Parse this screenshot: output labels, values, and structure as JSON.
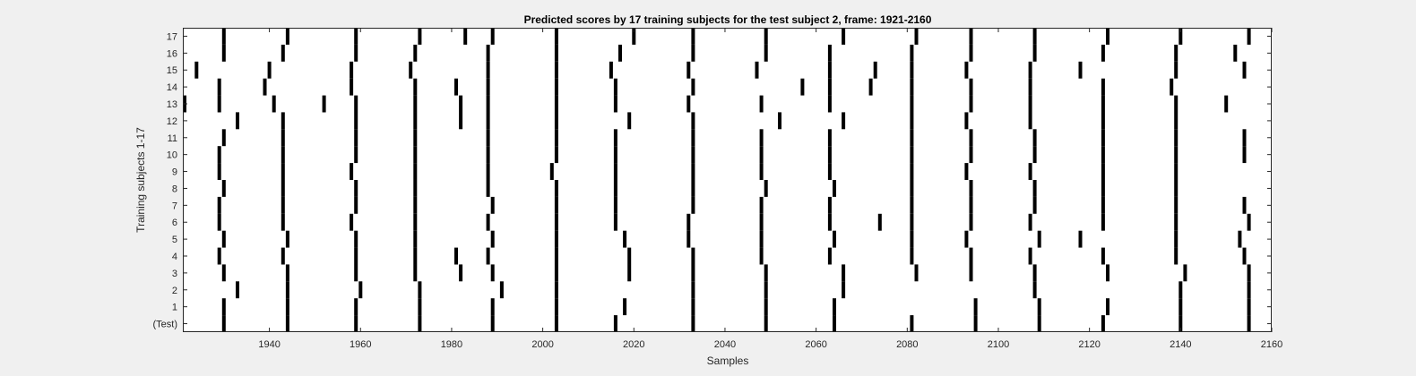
{
  "chart_data": {
    "type": "heatmap",
    "title": "Predicted scores by 17 training subjects for the test subject 2, frame: 1921-2160",
    "xlabel": "Samples",
    "ylabel": "Training subjects 1-17",
    "xlim": [
      1921,
      2160
    ],
    "x_ticks": [
      1940,
      1960,
      1980,
      2000,
      2020,
      2040,
      2060,
      2080,
      2100,
      2120,
      2140,
      2160
    ],
    "rows": [
      "(Test)",
      "1",
      "2",
      "3",
      "4",
      "5",
      "6",
      "7",
      "8",
      "9",
      "10",
      "11",
      "12",
      "13",
      "14",
      "15",
      "16",
      "17"
    ],
    "series": [
      {
        "name": "(Test)",
        "positions": [
          1930,
          1944,
          1959,
          1973,
          1989,
          2003,
          2016,
          2033,
          2049,
          2064,
          2081,
          2095,
          2109,
          2123,
          2140,
          2155
        ]
      },
      {
        "name": "1",
        "positions": [
          1930,
          1944,
          1959,
          1973,
          1989,
          2003,
          2018,
          2033,
          2049,
          2064,
          2095,
          2109,
          2124,
          2140,
          2155
        ]
      },
      {
        "name": "2",
        "positions": [
          1933,
          1944,
          1960,
          1973,
          1991,
          2003,
          2033,
          2049,
          2066,
          2108,
          2140,
          2155
        ]
      },
      {
        "name": "3",
        "positions": [
          1930,
          1944,
          1959,
          1972,
          1982,
          1989,
          2003,
          2019,
          2033,
          2049,
          2066,
          2082,
          2094,
          2108,
          2124,
          2141,
          2155
        ]
      },
      {
        "name": "4",
        "positions": [
          1929,
          1943,
          1959,
          1972,
          1981,
          1988,
          2003,
          2019,
          2033,
          2048,
          2063,
          2081,
          2094,
          2107,
          2123,
          2139,
          2154
        ]
      },
      {
        "name": "5",
        "positions": [
          1930,
          1944,
          1959,
          1972,
          1989,
          2003,
          2018,
          2032,
          2048,
          2064,
          2081,
          2093,
          2109,
          2118,
          2139,
          2153
        ]
      },
      {
        "name": "6",
        "positions": [
          1929,
          1943,
          1958,
          1972,
          1988,
          2003,
          2016,
          2032,
          2048,
          2063,
          2074,
          2081,
          2094,
          2107,
          2123,
          2139,
          2155
        ]
      },
      {
        "name": "7",
        "positions": [
          1929,
          1943,
          1959,
          1972,
          1989,
          2003,
          2016,
          2033,
          2048,
          2063,
          2081,
          2094,
          2108,
          2123,
          2139,
          2154
        ]
      },
      {
        "name": "8",
        "positions": [
          1930,
          1943,
          1959,
          1972,
          1988,
          2003,
          2016,
          2033,
          2049,
          2064,
          2081,
          2094,
          2108,
          2123,
          2139
        ]
      },
      {
        "name": "9",
        "positions": [
          1929,
          1943,
          1958,
          1972,
          1988,
          2002,
          2016,
          2033,
          2048,
          2063,
          2081,
          2093,
          2107,
          2123,
          2139
        ]
      },
      {
        "name": "10",
        "positions": [
          1929,
          1943,
          1959,
          1972,
          1988,
          2003,
          2016,
          2033,
          2048,
          2063,
          2081,
          2094,
          2108,
          2123,
          2139,
          2154
        ]
      },
      {
        "name": "11",
        "positions": [
          1930,
          1943,
          1959,
          1972,
          1988,
          2003,
          2016,
          2033,
          2048,
          2063,
          2081,
          2094,
          2108,
          2123,
          2139,
          2154
        ]
      },
      {
        "name": "12",
        "positions": [
          1933,
          1943,
          1959,
          1972,
          1982,
          1988,
          2003,
          2019,
          2033,
          2052,
          2066,
          2081,
          2093,
          2107,
          2123,
          2139
        ]
      },
      {
        "name": "13",
        "positions": [
          1921,
          1929,
          1941,
          1952,
          1959,
          1972,
          1982,
          1988,
          2003,
          2016,
          2032,
          2048,
          2063,
          2081,
          2094,
          2107,
          2123,
          2139,
          2150
        ]
      },
      {
        "name": "14",
        "positions": [
          1929,
          1939,
          1958,
          1972,
          1981,
          1988,
          2003,
          2016,
          2033,
          2057,
          2063,
          2072,
          2081,
          2094,
          2107,
          2123,
          2138
        ]
      },
      {
        "name": "15",
        "positions": [
          1924,
          1940,
          1958,
          1971,
          1988,
          2003,
          2015,
          2032,
          2047,
          2063,
          2073,
          2081,
          2093,
          2107,
          2118,
          2139,
          2154
        ]
      },
      {
        "name": "16",
        "positions": [
          1930,
          1943,
          1959,
          1972,
          1988,
          2003,
          2017,
          2033,
          2049,
          2063,
          2081,
          2094,
          2108,
          2123,
          2139,
          2152
        ]
      },
      {
        "name": "17",
        "positions": [
          1930,
          1944,
          1959,
          1973,
          1983,
          1989,
          2003,
          2020,
          2033,
          2049,
          2066,
          2082,
          2094,
          2108,
          2124,
          2140,
          2155
        ]
      }
    ],
    "grid": false,
    "legend": "none",
    "colors": {
      "background": "#f0f0f0",
      "plot": "#ffffff",
      "mark": "#000000",
      "text": "#262626"
    }
  }
}
